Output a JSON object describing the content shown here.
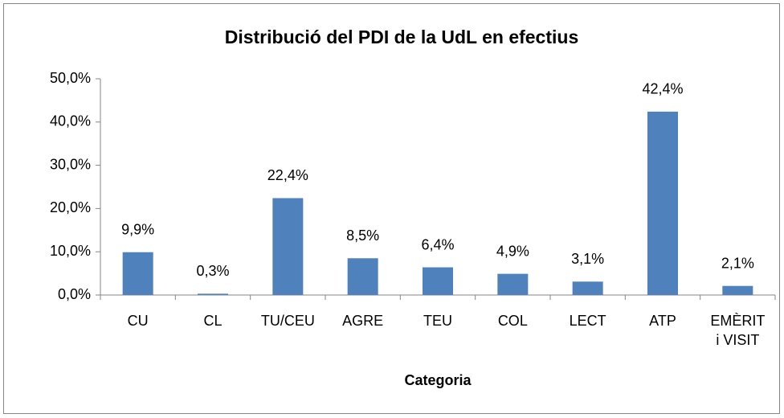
{
  "chart_data": {
    "type": "bar",
    "title": "Distribució del PDI de la UdL en efectius",
    "x_label": "Categoria",
    "categories": [
      "CU",
      "CL",
      "TU/CEU",
      "AGRE",
      "TEU",
      "COL",
      "LECT",
      "ATP",
      "EMÈRIT\ni VISIT"
    ],
    "values": [
      9.9,
      0.3,
      22.4,
      8.5,
      6.4,
      4.9,
      3.1,
      42.4,
      2.1
    ],
    "value_labels": [
      "9,9%",
      "0,3%",
      "22,4%",
      "8,5%",
      "6,4%",
      "4,9%",
      "3,1%",
      "42,4%",
      "2,1%"
    ],
    "color": "#4f81bd",
    "ylim": [
      0,
      50
    ],
    "yticks": [
      {
        "value": 0,
        "label": "0,0%"
      },
      {
        "value": 10,
        "label": "10,0%"
      },
      {
        "value": 20,
        "label": "20,0%"
      },
      {
        "value": 30,
        "label": "30,0%"
      },
      {
        "value": 40,
        "label": "40,0%"
      },
      {
        "value": 50,
        "label": "50,0%"
      }
    ],
    "grid": false
  }
}
